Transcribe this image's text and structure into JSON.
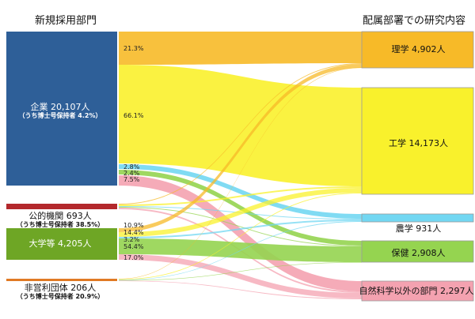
{
  "headers": {
    "left": "新規採用部門",
    "right": "配属部署での研究内容"
  },
  "sources": [
    {
      "id": "company",
      "name": "企業 20,107人",
      "sub": "（うち博士号保持者  4.2%）",
      "color": "#2e5f98"
    },
    {
      "id": "public",
      "name": "公的機関 693人",
      "sub": "（うち博士号保持者  38.5%）",
      "color": "#b3282c"
    },
    {
      "id": "university",
      "name": "大学等 4,205人",
      "sub": "",
      "color": "#6ea625"
    },
    {
      "id": "nonprofit",
      "name": "非営利団体 206人",
      "sub": "（うち博士号保持者  20.9%）",
      "color": "#e07a24"
    }
  ],
  "targets": [
    {
      "id": "science",
      "name": "理学 4,902人",
      "color": "#f7ba28"
    },
    {
      "id": "engineering",
      "name": "工学 14,173人",
      "color": "#f9f12c"
    },
    {
      "id": "agriculture",
      "name": "農学 931人",
      "color": "#72d7f2"
    },
    {
      "id": "health",
      "name": "保健 2,908人",
      "color": "#95d450"
    },
    {
      "id": "non_science",
      "name": "自然科学以外の部門 2,297人",
      "color": "#f4a2b0"
    }
  ],
  "flows": [
    {
      "source": "company",
      "target": "science",
      "pct": "21.3%"
    },
    {
      "source": "company",
      "target": "engineering",
      "pct": "66.1%"
    },
    {
      "source": "company",
      "target": "agriculture",
      "pct": "2.8%"
    },
    {
      "source": "company",
      "target": "health",
      "pct": "2.4%"
    },
    {
      "source": "company",
      "target": "non_science",
      "pct": "7.5%"
    },
    {
      "source": "public",
      "target": "science",
      "pct": ""
    },
    {
      "source": "public",
      "target": "engineering",
      "pct": ""
    },
    {
      "source": "public",
      "target": "agriculture",
      "pct": ""
    },
    {
      "source": "public",
      "target": "health",
      "pct": ""
    },
    {
      "source": "public",
      "target": "non_science",
      "pct": ""
    },
    {
      "source": "university",
      "target": "science",
      "pct": "10.9%"
    },
    {
      "source": "university",
      "target": "engineering",
      "pct": "14.4%"
    },
    {
      "source": "university",
      "target": "agriculture",
      "pct": "3.2%"
    },
    {
      "source": "university",
      "target": "health",
      "pct": "54.4%"
    },
    {
      "source": "university",
      "target": "non_science",
      "pct": "17.0%"
    },
    {
      "source": "nonprofit",
      "target": "science",
      "pct": ""
    },
    {
      "source": "nonprofit",
      "target": "engineering",
      "pct": ""
    },
    {
      "source": "nonprofit",
      "target": "agriculture",
      "pct": ""
    },
    {
      "source": "nonprofit",
      "target": "health",
      "pct": ""
    },
    {
      "source": "nonprofit",
      "target": "non_science",
      "pct": ""
    }
  ]
}
